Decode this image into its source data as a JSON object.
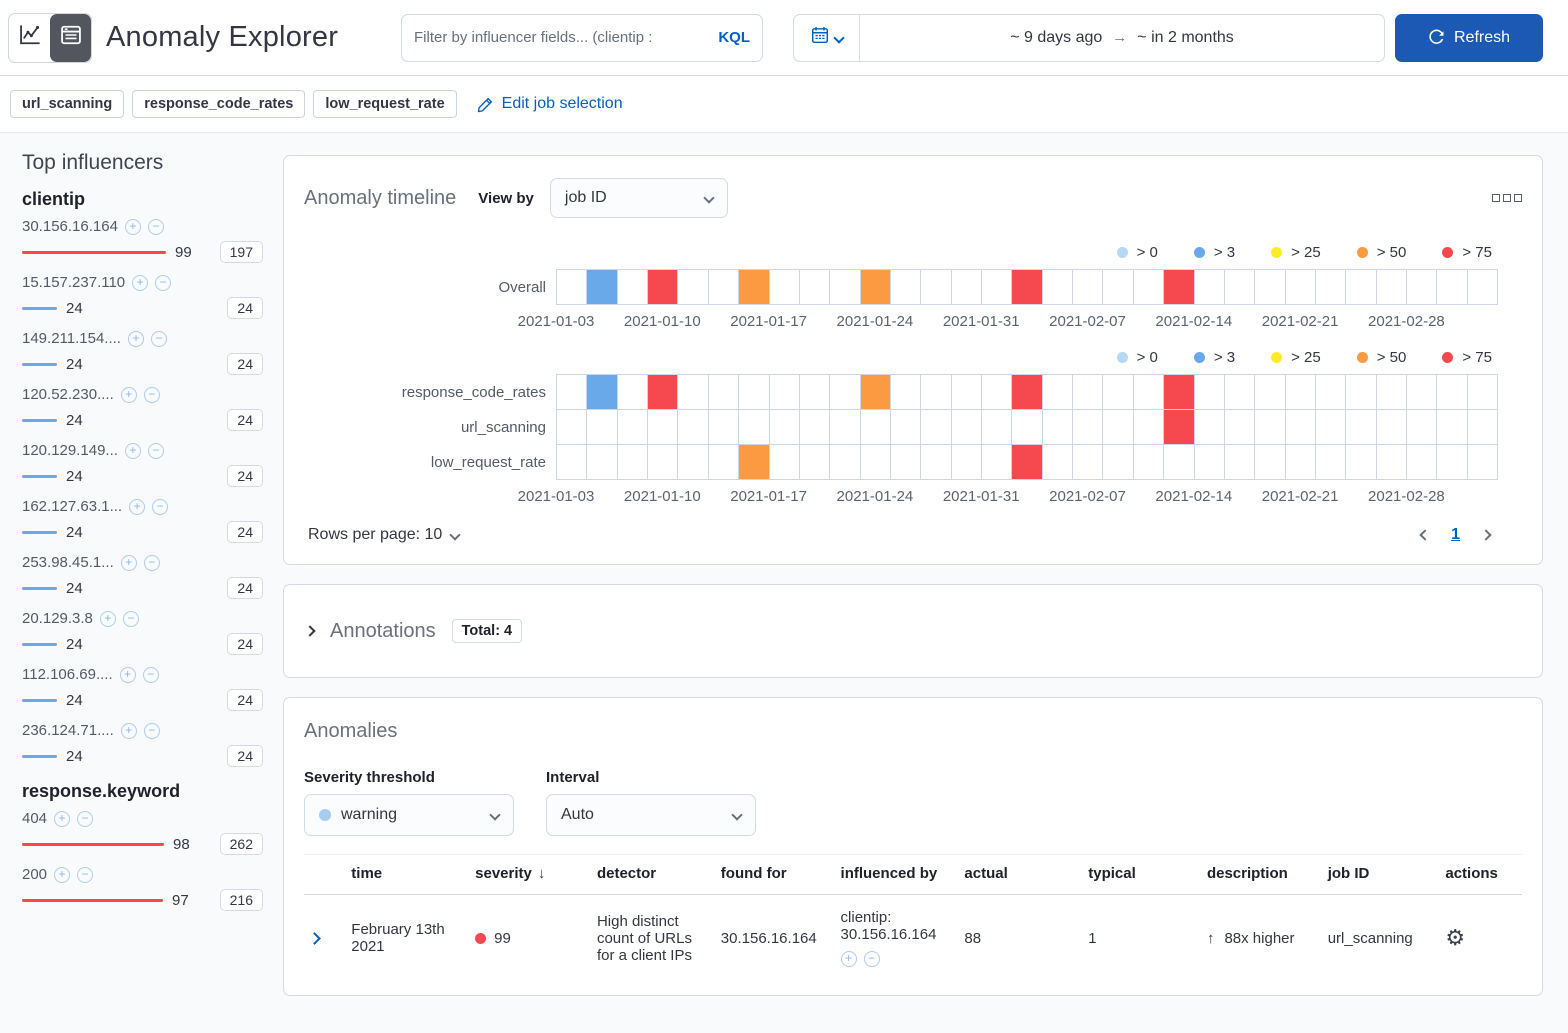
{
  "colors": {
    "link": "#0061c5",
    "refresh_button": "#1b59b5",
    "toggle_dark": "#53565f",
    "border": "#d3dae6",
    "pale_blue": "#b5d8f5",
    "blue": "#69a9e9",
    "yellow": "#fdec25",
    "orange": "#fb9a40",
    "red": "#f6494f"
  },
  "header": {
    "title": "Anomaly Explorer",
    "filter": {
      "placeholder": "Filter by influencer fields... (clientip :",
      "kql_label": "KQL"
    },
    "datepicker": {
      "start": "~ 9 days ago",
      "arrow": "→",
      "end": "~ in 2 months"
    },
    "refresh_label": "Refresh"
  },
  "jobs": {
    "badges": [
      "url_scanning",
      "response_code_rates",
      "low_request_rate"
    ],
    "edit_label": "Edit job selection"
  },
  "influencers": {
    "title": "Top influencers",
    "groups": [
      {
        "field": "clientip",
        "items": [
          {
            "name": "30.156.16.164",
            "score": "99",
            "total": "197",
            "color": "red"
          },
          {
            "name": "15.157.237.110",
            "score": "24",
            "total": "24",
            "color": "blue"
          },
          {
            "name": "149.211.154....",
            "score": "24",
            "total": "24",
            "color": "blue"
          },
          {
            "name": "120.52.230....",
            "score": "24",
            "total": "24",
            "color": "blue"
          },
          {
            "name": "120.129.149...",
            "score": "24",
            "total": "24",
            "color": "blue"
          },
          {
            "name": "162.127.63.1...",
            "score": "24",
            "total": "24",
            "color": "blue"
          },
          {
            "name": "253.98.45.1...",
            "score": "24",
            "total": "24",
            "color": "blue"
          },
          {
            "name": "20.129.3.8",
            "score": "24",
            "total": "24",
            "color": "blue"
          },
          {
            "name": "112.106.69....",
            "score": "24",
            "total": "24",
            "color": "blue"
          },
          {
            "name": "236.124.71....",
            "score": "24",
            "total": "24",
            "color": "blue"
          }
        ]
      },
      {
        "field": "response.keyword",
        "items": [
          {
            "name": "404",
            "score": "98",
            "total": "262",
            "color": "red"
          },
          {
            "name": "200",
            "score": "97",
            "total": "216",
            "color": "red"
          }
        ]
      }
    ]
  },
  "timeline": {
    "title": "Anomaly timeline",
    "view_by_label": "View by",
    "view_by_value": "job ID",
    "legend": [
      {
        "label": "> 0",
        "color": "pale_blue"
      },
      {
        "label": "> 3",
        "color": "blue"
      },
      {
        "label": "> 25",
        "color": "yellow"
      },
      {
        "label": "> 50",
        "color": "orange"
      },
      {
        "label": "> 75",
        "color": "red"
      }
    ],
    "num_cells": 31,
    "dates": [
      "2021-01-03",
      "2021-01-10",
      "2021-01-17",
      "2021-01-24",
      "2021-01-31",
      "2021-02-07",
      "2021-02-14",
      "2021-02-21",
      "2021-02-28"
    ],
    "overall": {
      "label": "Overall",
      "cells": [
        {
          "i": 1,
          "c": "blue"
        },
        {
          "i": 3,
          "c": "red"
        },
        {
          "i": 6,
          "c": "orange"
        },
        {
          "i": 10,
          "c": "orange"
        },
        {
          "i": 15,
          "c": "red"
        },
        {
          "i": 20,
          "c": "red"
        }
      ]
    },
    "lanes": [
      {
        "label": "response_code_rates",
        "cells": [
          {
            "i": 1,
            "c": "blue"
          },
          {
            "i": 3,
            "c": "red"
          },
          {
            "i": 10,
            "c": "orange"
          },
          {
            "i": 15,
            "c": "red"
          },
          {
            "i": 20,
            "c": "red"
          }
        ]
      },
      {
        "label": "url_scanning",
        "cells": [
          {
            "i": 20,
            "c": "red"
          }
        ]
      },
      {
        "label": "low_request_rate",
        "cells": [
          {
            "i": 6,
            "c": "orange"
          },
          {
            "i": 15,
            "c": "red"
          }
        ]
      }
    ],
    "rows_per_page_label": "Rows per page: 10",
    "page": "1"
  },
  "annotations": {
    "title": "Annotations",
    "badge": "Total: 4"
  },
  "anomalies": {
    "title": "Anomalies",
    "severity_label": "Severity threshold",
    "severity_value": "warning",
    "interval_label": "Interval",
    "interval_value": "Auto",
    "table": {
      "columns": [
        {
          "label": "time"
        },
        {
          "label": "severity",
          "sort": "↓"
        },
        {
          "label": "detector"
        },
        {
          "label": "found for"
        },
        {
          "label": "influenced by"
        },
        {
          "label": "actual"
        },
        {
          "label": "typical"
        },
        {
          "label": "description"
        },
        {
          "label": "job ID"
        },
        {
          "label": "actions"
        }
      ],
      "rows": [
        {
          "time": "February 13th 2021",
          "severity": "99",
          "detector": "High distinct count of URLs for a client IPs",
          "found_for": "30.156.16.164",
          "influenced_by": "clientip: 30.156.16.164",
          "actual": "88",
          "typical": "1",
          "description_arrow": "↑",
          "description": "88x higher",
          "job_id": "url_scanning"
        }
      ]
    }
  }
}
